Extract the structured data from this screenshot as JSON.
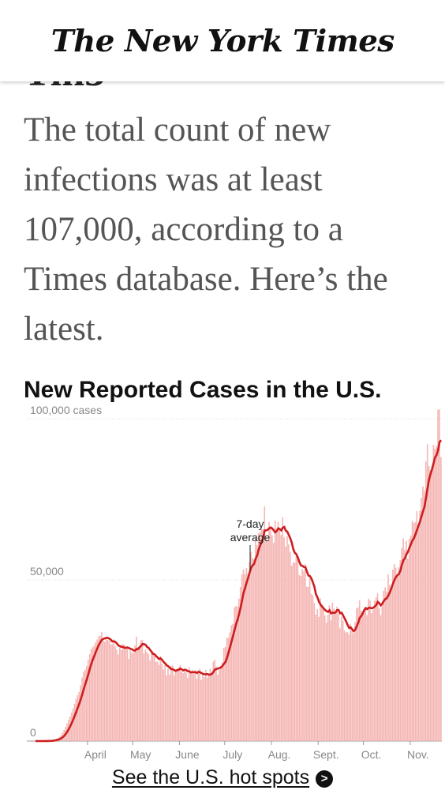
{
  "header": {
    "logo_text": "The New York Times"
  },
  "article": {
    "summary": "The total count of new infections was at least 107,000, according to a Times database. Here’s the latest."
  },
  "chart_data": {
    "type": "bar",
    "title": "New Reported Cases in the U.S.",
    "bar_color": "#f4b6b4",
    "line_color": "#cc1e1e",
    "y_tick_labels": [
      "100,000 cases",
      "50,000",
      "0"
    ],
    "y_ticks": [
      100000,
      50000,
      0
    ],
    "ylim": [
      0,
      100000
    ],
    "x_tick_labels": [
      "April",
      "May",
      "June",
      "July",
      "Aug.",
      "Sept.",
      "Oct.",
      "Nov."
    ],
    "annotation": {
      "text_line1": "7-day",
      "text_line2": "average"
    },
    "series": [
      {
        "name": "7-day average",
        "x": [
          "Mar. 1",
          "Mar. 15",
          "Mar. 21",
          "Mar. 28",
          "Apr. 4",
          "Apr. 10",
          "Apr. 20",
          "Apr. 30",
          "May 5",
          "May 15",
          "May 25",
          "June 5",
          "June 15",
          "June 25",
          "July 1",
          "July 8",
          "July 15",
          "July 22",
          "July 26",
          "Aug. 1",
          "Aug. 8",
          "Aug. 14",
          "Aug. 22",
          "Aug. 28",
          "Sept. 3",
          "Sept. 10",
          "Sept. 17",
          "Sept. 22",
          "Sept. 27",
          "Oct. 5",
          "Oct. 12",
          "Oct. 20",
          "Oct. 28",
          "Nov. 3",
          "Nov. 9"
        ],
        "values": [
          0,
          400,
          8000,
          18000,
          28000,
          31000,
          29000,
          28000,
          29500,
          28000,
          23000,
          22000,
          21000,
          22000,
          26000,
          37000,
          50000,
          60000,
          66000,
          67500,
          66500,
          57000,
          54000,
          44000,
          40000,
          41000,
          39000,
          35000,
          39000,
          42000,
          44000,
          51000,
          59000,
          72000,
          85000
        ]
      }
    ],
    "daily_values": [
      0,
      0,
      0,
      0,
      0,
      0,
      0,
      0,
      100,
      100,
      100,
      200,
      400,
      500,
      700,
      900,
      1300,
      1800,
      2500,
      3400,
      4400,
      5500,
      6600,
      7600,
      8800,
      10100,
      11600,
      13100,
      14300,
      15200,
      17300,
      19700,
      21500,
      22200,
      23300,
      25200,
      27000,
      28500,
      29100,
      29600,
      30600,
      31500,
      32500,
      32700,
      33800,
      31200,
      30800,
      31600,
      31400,
      31100,
      30000,
      30100,
      31600,
      29400,
      28400,
      26900,
      29900,
      28200,
      30100,
      29900,
      29100,
      29300,
      25500,
      28100,
      27400,
      27500,
      29600,
      32400,
      29100,
      29400,
      31300,
      31400,
      27100,
      28500,
      27700,
      27000,
      25000,
      27200,
      26800,
      26300,
      24500,
      24700,
      23600,
      26400,
      23900,
      22100,
      23600,
      20400,
      22500,
      20600,
      23300,
      23400,
      20400,
      21800,
      22300,
      22800,
      23500,
      21600,
      21100,
      21700,
      21200,
      19600,
      22900,
      21000,
      22100,
      21000,
      22000,
      19300,
      21900,
      22400,
      19000,
      20600,
      19800,
      22100,
      19700,
      20700,
      22400,
      20700,
      24600,
      25200,
      23100,
      20600,
      22100,
      23300,
      24400,
      28900,
      29200,
      32000,
      32100,
      33700,
      35900,
      36400,
      41500,
      41900,
      41700,
      44200,
      47800,
      51700,
      53200,
      51800,
      53700,
      51800,
      55600,
      58600,
      56800,
      56400,
      62900,
      60800,
      64500,
      64800,
      65900,
      65600,
      72800,
      63100,
      62000,
      67900,
      66500,
      63800,
      61500,
      68400,
      65900,
      68000,
      66100,
      63900,
      69500,
      63200,
      60300,
      63600,
      61000,
      58700,
      54400,
      55400,
      55400,
      57300,
      56400,
      51600,
      51200,
      53400,
      52700,
      54900,
      47900,
      47800,
      50400,
      45700,
      45200,
      42800,
      39200,
      40900,
      38500,
      44300,
      41600,
      41300,
      39000,
      36700,
      39200,
      42100,
      37400,
      43000,
      41100,
      39800,
      41700,
      39500,
      35000,
      38600,
      37400,
      34300,
      33700,
      33800,
      33000,
      36400,
      34200,
      33400,
      36900,
      41100,
      41500,
      43700,
      40500,
      39900,
      40700,
      41300,
      39100,
      44200,
      43600,
      39700,
      40800,
      43500,
      44600,
      45800,
      41300,
      39000,
      43300,
      46600,
      47700,
      46400,
      51700,
      48400,
      47200,
      53200,
      54900,
      53800,
      51000,
      54000,
      56100,
      59900,
      62900,
      59300,
      62100,
      56600,
      62800,
      63800,
      68300,
      67600,
      67900,
      71300,
      66000,
      71500,
      75500,
      79000,
      77700,
      86700,
      92100,
      85300,
      84100,
      85300,
      91900,
      90700,
      91700,
      102800,
      102900,
      88100
    ]
  },
  "footer_link": {
    "label": "See the U.S. hot spots",
    "arrow": ">"
  }
}
